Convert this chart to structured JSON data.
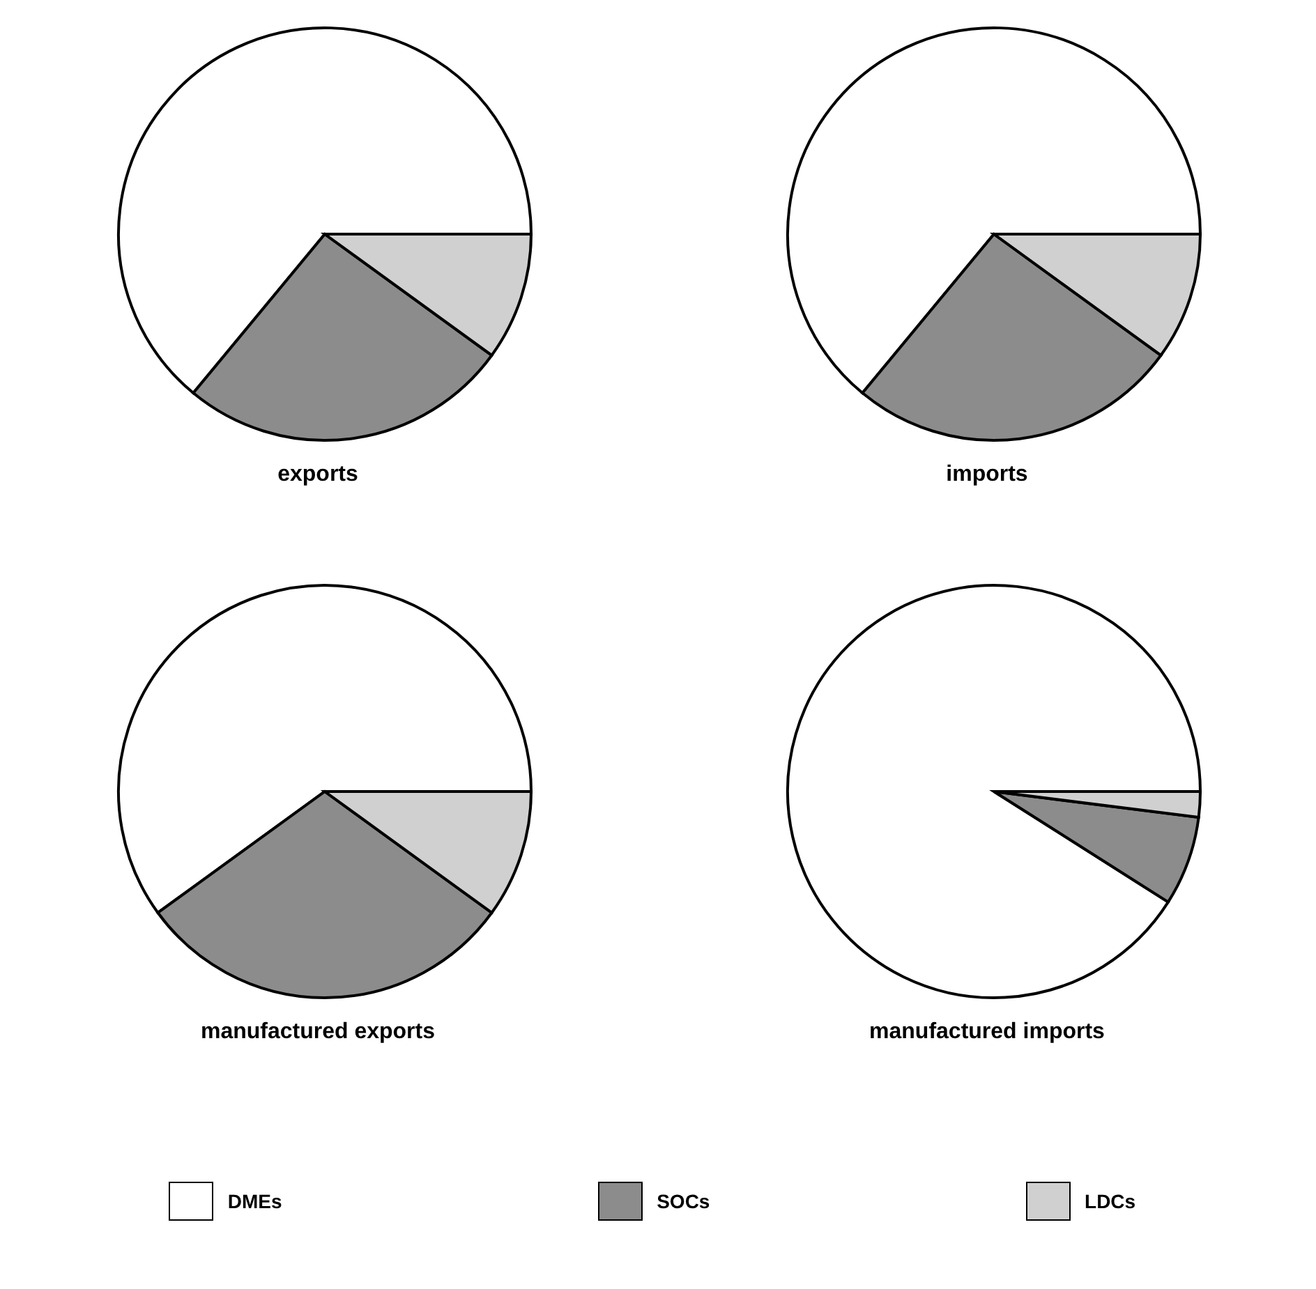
{
  "chart_data": [
    {
      "type": "pie",
      "title": "exports",
      "categories": [
        "DMEs",
        "SOCs",
        "LDCs"
      ],
      "values": [
        64,
        26,
        10
      ],
      "colors": [
        "#ffffff",
        "#8c8c8c",
        "#d0d0d0"
      ],
      "legend": "bottom"
    },
    {
      "type": "pie",
      "title": "imports",
      "categories": [
        null,
        null,
        null
      ],
      "values": [
        64,
        26,
        10
      ],
      "colors": [
        "#ffffff",
        "#8c8c8c",
        "#d0d0d0"
      ]
    },
    {
      "type": "pie",
      "title": "manufactured exports",
      "categories": [
        null,
        null,
        null
      ],
      "values": [
        60,
        30,
        10
      ],
      "colors": [
        "#ffffff",
        "#8c8c8c",
        "#d0d0d0"
      ]
    },
    {
      "type": "pie",
      "title": "manufactured imports",
      "categories": [
        null,
        null,
        null
      ],
      "values": [
        91,
        7,
        2
      ],
      "colors": [
        "#ffffff",
        "#8c8c8c",
        "#d0d0d0"
      ]
    }
  ]
}
